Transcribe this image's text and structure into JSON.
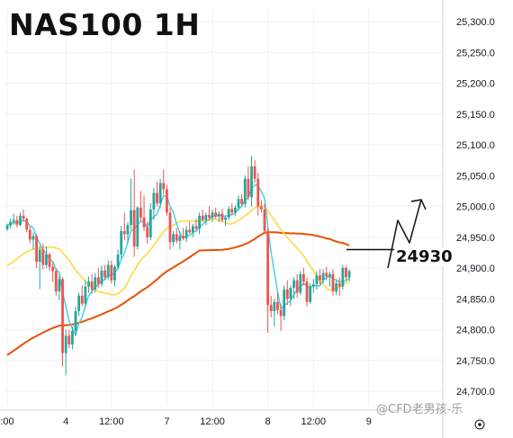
{
  "chart_data": {
    "type": "candlestick",
    "title": "NAS100 1H",
    "ylim": [
      24700,
      25330
    ],
    "yticks": [
      25300,
      25250,
      25200,
      25150,
      25100,
      25050,
      25000,
      24950,
      24900,
      24850,
      24800,
      24750,
      24700
    ],
    "ytick_labels": [
      "25,300.0",
      "25,250.0",
      "25,200.0",
      "25,150.0",
      "25,100.0",
      "25,050.0",
      "25,000.0",
      "24,950.0",
      "24,900.0",
      "24,850.0",
      "24,800.0",
      "24,750.0",
      "24,700.0"
    ],
    "xticks": [
      {
        "label": ":00",
        "bar": 0
      },
      {
        "label": "4",
        "bar": 18
      },
      {
        "label": "12:00",
        "bar": 32
      },
      {
        "label": "7",
        "bar": 49
      },
      {
        "label": "12:00",
        "bar": 63
      },
      {
        "label": "8",
        "bar": 80
      },
      {
        "label": "12:00",
        "bar": 94
      },
      {
        "label": "9",
        "bar": 111
      }
    ],
    "candles": [
      [
        24963,
        24972,
        24960,
        24969
      ],
      [
        24969,
        24980,
        24964,
        24975
      ],
      [
        24975,
        24988,
        24970,
        24978
      ],
      [
        24978,
        24985,
        24966,
        24970
      ],
      [
        24970,
        24990,
        24968,
        24985
      ],
      [
        24985,
        24995,
        24975,
        24980
      ],
      [
        24980,
        24982,
        24958,
        24962
      ],
      [
        24962,
        24968,
        24940,
        24946
      ],
      [
        24946,
        24958,
        24930,
        24952
      ],
      [
        24952,
        24955,
        24900,
        24910
      ],
      [
        24910,
        24936,
        24866,
        24930
      ],
      [
        24930,
        24940,
        24898,
        24905
      ],
      [
        24905,
        24935,
        24900,
        24922
      ],
      [
        24922,
        24925,
        24895,
        24902
      ],
      [
        24902,
        24910,
        24878,
        24895
      ],
      [
        24895,
        24900,
        24855,
        24862
      ],
      [
        24862,
        24890,
        24848,
        24882
      ],
      [
        24882,
        24885,
        24740,
        24762
      ],
      [
        24762,
        24800,
        24726,
        24790
      ],
      [
        24790,
        24800,
        24770,
        24776
      ],
      [
        24776,
        24805,
        24768,
        24798
      ],
      [
        24798,
        24838,
        24790,
        24830
      ],
      [
        24830,
        24860,
        24822,
        24855
      ],
      [
        24855,
        24872,
        24838,
        24842
      ],
      [
        24842,
        24880,
        24836,
        24870
      ],
      [
        24870,
        24886,
        24860,
        24878
      ],
      [
        24878,
        24890,
        24858,
        24865
      ],
      [
        24865,
        24892,
        24860,
        24885
      ],
      [
        24885,
        24900,
        24868,
        24874
      ],
      [
        24874,
        24904,
        24870,
        24896
      ],
      [
        24896,
        24905,
        24880,
        24885
      ],
      [
        24885,
        24912,
        24880,
        24905
      ],
      [
        24905,
        24912,
        24875,
        24880
      ],
      [
        24880,
        24905,
        24870,
        24902
      ],
      [
        24902,
        24930,
        24898,
        24922
      ],
      [
        24922,
        24968,
        24915,
        24960
      ],
      [
        24960,
        24990,
        24945,
        24955
      ],
      [
        24955,
        24975,
        24940,
        24970
      ],
      [
        24970,
        25045,
        24962,
        24994
      ],
      [
        24994,
        25060,
        24918,
        24935
      ],
      [
        24935,
        25000,
        24930,
        24998
      ],
      [
        24998,
        25025,
        24975,
        24982
      ],
      [
        24982,
        25018,
        24960,
        24966
      ],
      [
        24966,
        24975,
        24940,
        24950
      ],
      [
        24950,
        25005,
        24945,
        24995
      ],
      [
        24995,
        25030,
        24978,
        25022
      ],
      [
        25022,
        25040,
        25000,
        25005
      ],
      [
        25005,
        25045,
        24998,
        25038
      ],
      [
        25038,
        25060,
        25020,
        25028
      ],
      [
        25028,
        25035,
        24985,
        24990
      ],
      [
        24990,
        24998,
        24930,
        24942
      ],
      [
        24942,
        24960,
        24935,
        24955
      ],
      [
        24955,
        24965,
        24940,
        24944
      ],
      [
        24944,
        24960,
        24930,
        24952
      ],
      [
        24952,
        24965,
        24945,
        24948
      ],
      [
        24948,
        24968,
        24942,
        24962
      ],
      [
        24962,
        24975,
        24955,
        24958
      ],
      [
        24958,
        24972,
        24950,
        24968
      ],
      [
        24968,
        24980,
        24960,
        24964
      ],
      [
        24964,
        24990,
        24955,
        24985
      ],
      [
        24985,
        24995,
        24975,
        24978
      ],
      [
        24978,
        24990,
        24970,
        24986
      ],
      [
        24986,
        25000,
        24978,
        24982
      ],
      [
        24982,
        24995,
        24975,
        24990
      ],
      [
        24990,
        24998,
        24980,
        24984
      ],
      [
        24984,
        24992,
        24975,
        24988
      ],
      [
        24988,
        24996,
        24975,
        24978
      ],
      [
        24978,
        24985,
        24968,
        24982
      ],
      [
        24982,
        25000,
        24978,
        24996
      ],
      [
        24996,
        25005,
        24985,
        24990
      ],
      [
        24990,
        25002,
        24984,
        24998
      ],
      [
        24998,
        25018,
        24994,
        25012
      ],
      [
        25012,
        25020,
        25000,
        25004
      ],
      [
        25004,
        25050,
        24998,
        25045
      ],
      [
        25045,
        25065,
        25010,
        25015
      ],
      [
        25015,
        25082,
        25000,
        25065
      ],
      [
        25065,
        25075,
        25038,
        25045
      ],
      [
        25045,
        25055,
        24985,
        25000
      ],
      [
        25000,
        25010,
        24990,
        24995
      ],
      [
        24995,
        25005,
        24955,
        24960
      ],
      [
        24960,
        24965,
        24795,
        24840
      ],
      [
        24840,
        24855,
        24820,
        24830
      ],
      [
        24830,
        24850,
        24805,
        24845
      ],
      [
        24845,
        24860,
        24825,
        24832
      ],
      [
        24832,
        24842,
        24798,
        24822
      ],
      [
        24822,
        24872,
        24815,
        24865
      ],
      [
        24865,
        24880,
        24840,
        24850
      ],
      [
        24850,
        24872,
        24838,
        24868
      ],
      [
        24868,
        24885,
        24850,
        24880
      ],
      [
        24880,
        24890,
        24852,
        24860
      ],
      [
        24860,
        24895,
        24856,
        24890
      ],
      [
        24890,
        24900,
        24872,
        24878
      ],
      [
        24878,
        24884,
        24838,
        24845
      ],
      [
        24845,
        24875,
        24842,
        24870
      ],
      [
        24870,
        24882,
        24860,
        24874
      ],
      [
        24874,
        24895,
        24865,
        24888
      ],
      [
        24888,
        24898,
        24872,
        24880
      ],
      [
        24880,
        24898,
        24875,
        24892
      ],
      [
        24892,
        24902,
        24880,
        24886
      ],
      [
        24886,
        24894,
        24870,
        24890
      ],
      [
        24890,
        24898,
        24855,
        24862
      ],
      [
        24862,
        24880,
        24856,
        24875
      ],
      [
        24875,
        24885,
        24855,
        24870
      ],
      [
        24870,
        24905,
        24865,
        24900
      ],
      [
        24900,
        24904,
        24880,
        24885
      ],
      [
        24885,
        24898,
        24878,
        24895
      ]
    ],
    "level": 24930,
    "level_label": "24930",
    "colors": {
      "up": "#26a69a",
      "down": "#ef5350",
      "ma_fast": "#4dd0e1",
      "ma_mid": "#fdd835",
      "ma_slow": "#e65100",
      "grid": "#eef0f3",
      "axis": "#d1d4dc"
    }
  },
  "watermark": "@CFD老男孩-乐"
}
